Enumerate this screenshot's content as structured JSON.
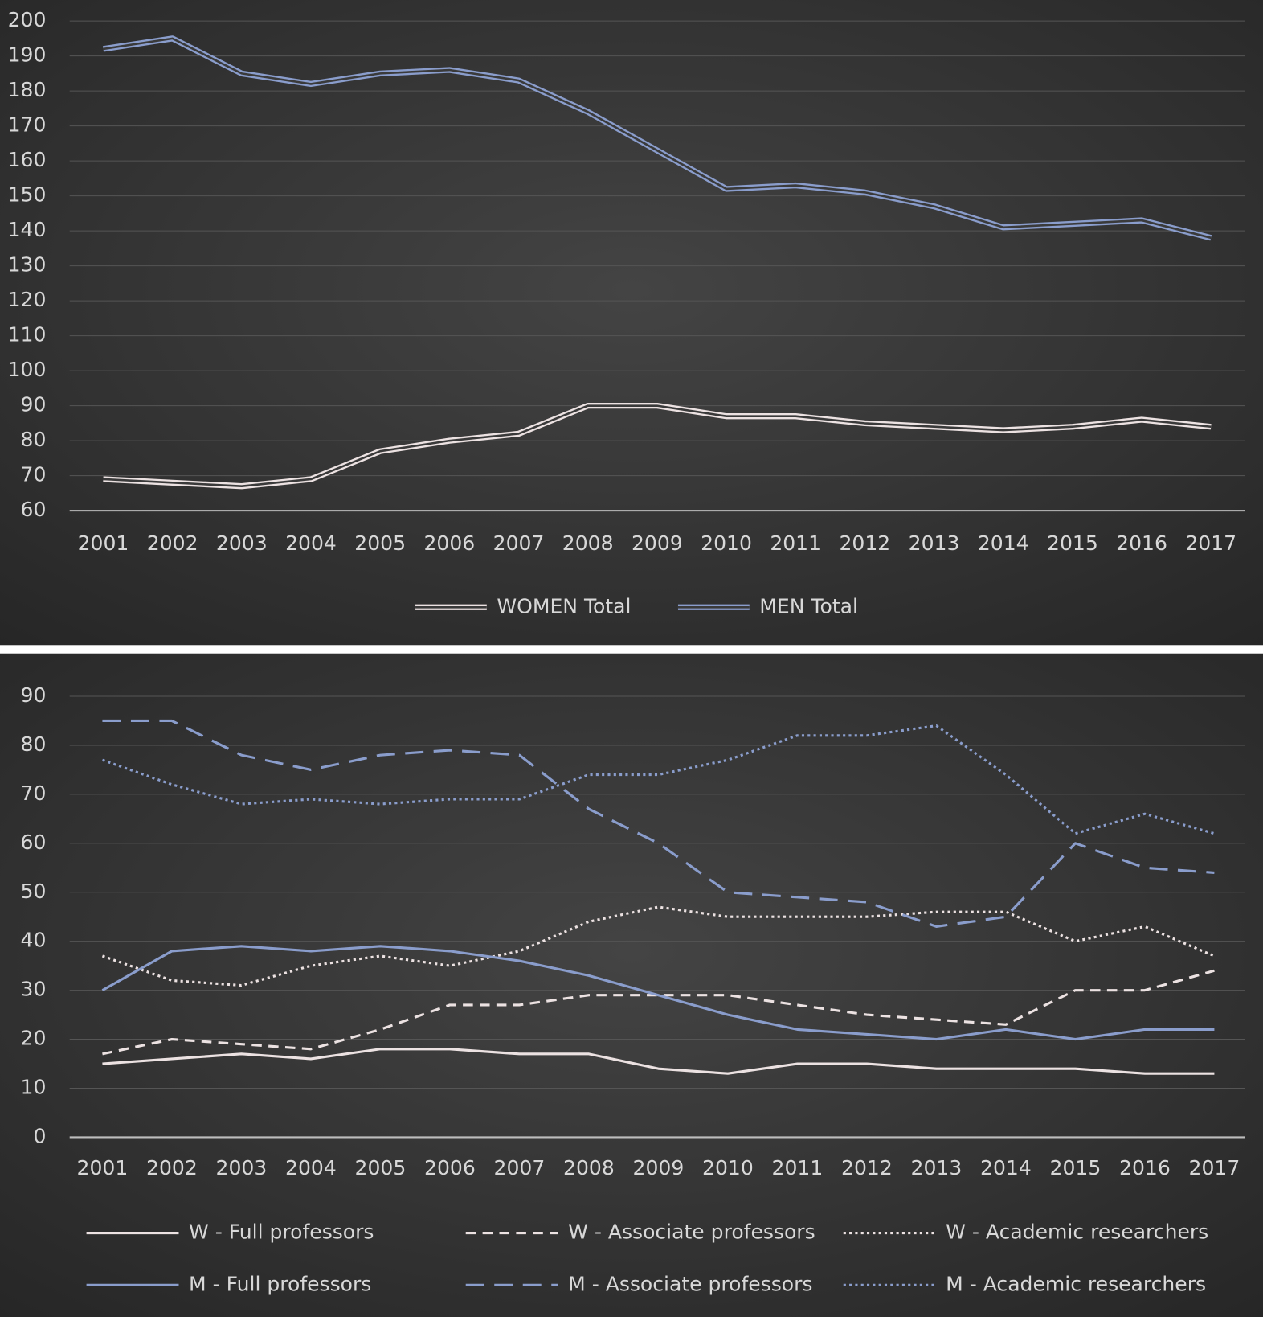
{
  "chart_data": [
    {
      "type": "line",
      "categories": [
        "2001",
        "2002",
        "2003",
        "2004",
        "2005",
        "2006",
        "2007",
        "2008",
        "2009",
        "2010",
        "2011",
        "2012",
        "2013",
        "2014",
        "2015",
        "2016",
        "2017"
      ],
      "series": [
        {
          "name": "WOMEN Total",
          "color": "#ece2e2",
          "style": "double",
          "values": [
            69,
            68,
            67,
            69,
            77,
            80,
            82,
            90,
            90,
            87,
            87,
            85,
            84,
            83,
            84,
            86,
            84
          ]
        },
        {
          "name": "MEN Total",
          "color": "#8a9dcc",
          "style": "double",
          "values": [
            192,
            195,
            185,
            182,
            185,
            186,
            183,
            174,
            163,
            152,
            153,
            151,
            147,
            141,
            142,
            143,
            138
          ]
        }
      ],
      "ylim": [
        60,
        200
      ],
      "yticks": [
        60,
        70,
        80,
        90,
        100,
        110,
        120,
        130,
        140,
        150,
        160,
        170,
        180,
        190,
        200
      ],
      "grid": true,
      "legend": "bottom"
    },
    {
      "type": "line",
      "categories": [
        "2001",
        "2002",
        "2003",
        "2004",
        "2005",
        "2006",
        "2007",
        "2008",
        "2009",
        "2010",
        "2011",
        "2012",
        "2013",
        "2014",
        "2015",
        "2016",
        "2017"
      ],
      "series": [
        {
          "name": "W - Full professors",
          "color": "#ece2e2",
          "style": "solid",
          "values": [
            15,
            16,
            17,
            16,
            18,
            18,
            17,
            17,
            14,
            13,
            15,
            15,
            14,
            14,
            14,
            13,
            13
          ]
        },
        {
          "name": "W - Associate professors",
          "color": "#ece2e2",
          "style": "dashed",
          "values": [
            17,
            20,
            19,
            18,
            22,
            27,
            27,
            29,
            29,
            29,
            27,
            25,
            24,
            23,
            30,
            30,
            34
          ]
        },
        {
          "name": "W - Academic researchers",
          "color": "#ece2e2",
          "style": "dotted",
          "values": [
            37,
            32,
            31,
            35,
            37,
            35,
            38,
            44,
            47,
            45,
            45,
            45,
            46,
            46,
            40,
            43,
            37
          ]
        },
        {
          "name": "M - Full professors",
          "color": "#8a9dcc",
          "style": "solid",
          "values": [
            30,
            38,
            39,
            38,
            39,
            38,
            36,
            33,
            29,
            25,
            22,
            21,
            20,
            22,
            20,
            22,
            22
          ]
        },
        {
          "name": "M - Associate professors",
          "color": "#8a9dcc",
          "style": "longdash",
          "values": [
            85,
            85,
            78,
            75,
            78,
            79,
            78,
            67,
            60,
            50,
            49,
            48,
            43,
            45,
            60,
            55,
            54
          ]
        },
        {
          "name": "M - Academic researchers",
          "color": "#8a9dcc",
          "style": "dotted",
          "values": [
            77,
            72,
            68,
            69,
            68,
            69,
            69,
            74,
            74,
            77,
            82,
            82,
            84,
            74,
            62,
            66,
            62
          ]
        }
      ],
      "ylim": [
        0,
        90
      ],
      "yticks": [
        0,
        10,
        20,
        30,
        40,
        50,
        60,
        70,
        80,
        90
      ],
      "grid": true,
      "legend": "bottom"
    }
  ]
}
